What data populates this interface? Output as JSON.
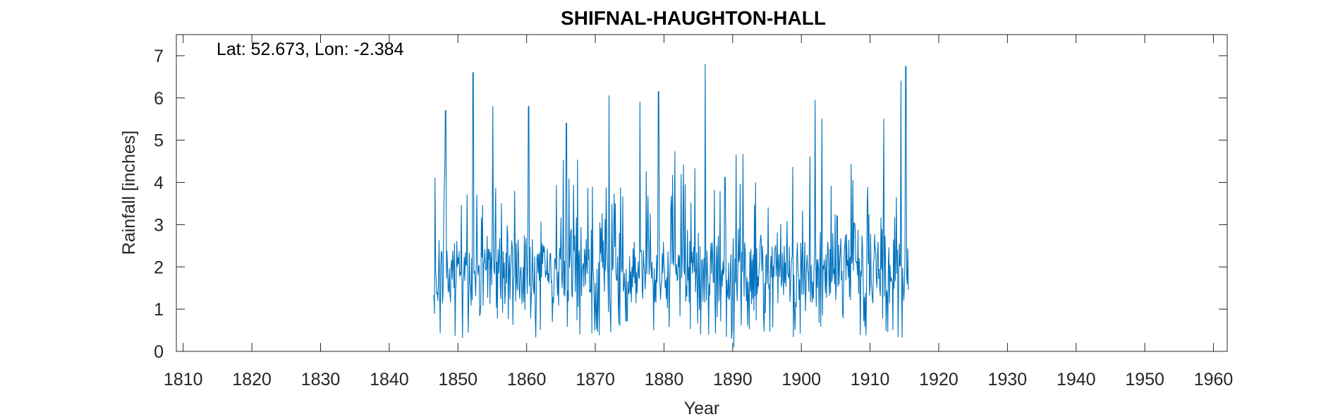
{
  "chart_data": {
    "type": "line",
    "title": "SHIFNAL-HAUGHTON-HALL",
    "annotation": "Lat: 52.673, Lon: -2.384",
    "xlabel": "Year",
    "ylabel": "Rainfall [inches]",
    "xlim": [
      1809,
      1962
    ],
    "ylim": [
      0,
      7.5
    ],
    "xticks": [
      1810,
      1820,
      1830,
      1840,
      1850,
      1860,
      1870,
      1880,
      1890,
      1900,
      1910,
      1920,
      1930,
      1940,
      1950,
      1960
    ],
    "yticks": [
      0,
      1,
      2,
      3,
      4,
      5,
      6,
      7
    ],
    "grid": false,
    "series": [
      {
        "color": "#0072BD",
        "x_start": 1846.5,
        "x_end": 1915.6,
        "step_months": 1,
        "peaks": [
          {
            "x": 1848.2,
            "y": 5.7
          },
          {
            "x": 1852.2,
            "y": 6.6
          },
          {
            "x": 1855.1,
            "y": 5.8
          },
          {
            "x": 1860.3,
            "y": 5.8
          },
          {
            "x": 1865.8,
            "y": 5.4
          },
          {
            "x": 1872.0,
            "y": 6.05
          },
          {
            "x": 1876.5,
            "y": 5.9
          },
          {
            "x": 1879.2,
            "y": 6.15
          },
          {
            "x": 1886.0,
            "y": 6.8
          },
          {
            "x": 1902.0,
            "y": 5.95
          },
          {
            "x": 1903.0,
            "y": 5.5
          },
          {
            "x": 1912.0,
            "y": 5.5
          },
          {
            "x": 1914.5,
            "y": 6.4
          },
          {
            "x": 1915.2,
            "y": 6.75
          }
        ],
        "min_value": 0.1,
        "typical_range": [
          1.0,
          3.0
        ]
      }
    ]
  }
}
